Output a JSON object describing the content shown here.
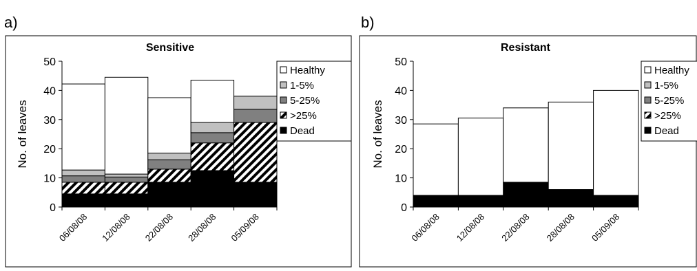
{
  "panels": [
    {
      "label": "a)"
    },
    {
      "label": "b)"
    }
  ],
  "chart_data": [
    {
      "type": "bar",
      "stacked": true,
      "title": "Sensitive",
      "xlabel": "",
      "ylabel": "No. of leaves",
      "ylim": [
        0,
        50
      ],
      "yticks": [
        0,
        10,
        20,
        30,
        40,
        50
      ],
      "categories": [
        "06/08/08",
        "12/08/08",
        "22/08/08",
        "28/08/08",
        "05/09/08"
      ],
      "series": [
        {
          "name": "Dead",
          "values": [
            4.5,
            4.5,
            8.5,
            12.5,
            8.5
          ]
        },
        {
          "name": ">25%",
          "values": [
            4,
            4,
            4.5,
            9.5,
            20.5
          ]
        },
        {
          "name": "5-25%",
          "values": [
            2.2,
            1.8,
            3.2,
            3.5,
            4.5
          ]
        },
        {
          "name": "1-5%",
          "values": [
            2,
            1,
            2.3,
            3.5,
            4.5
          ]
        },
        {
          "name": "Healthy",
          "values": [
            29.5,
            33.2,
            19,
            14.5,
            0
          ]
        }
      ],
      "legend_position": "right",
      "grid": false
    },
    {
      "type": "bar",
      "stacked": true,
      "title": "Resistant",
      "xlabel": "",
      "ylabel": "No. of leaves",
      "ylim": [
        0,
        50
      ],
      "yticks": [
        0,
        10,
        20,
        30,
        40,
        50
      ],
      "categories": [
        "06/08/08",
        "12/08/08",
        "22/08/08",
        "28/08/08",
        "05/09/08"
      ],
      "series": [
        {
          "name": "Dead",
          "values": [
            4,
            4,
            8.5,
            6,
            4
          ]
        },
        {
          "name": ">25%",
          "values": [
            0,
            0,
            0,
            0,
            0
          ]
        },
        {
          "name": "5-25%",
          "values": [
            0,
            0,
            0,
            0,
            0
          ]
        },
        {
          "name": "1-5%",
          "values": [
            0,
            0,
            0,
            0,
            0
          ]
        },
        {
          "name": "Healthy",
          "values": [
            24.5,
            26.5,
            25.5,
            30,
            36
          ]
        }
      ],
      "legend_position": "right",
      "grid": false
    }
  ],
  "legend_order": [
    "Healthy",
    "1-5%",
    "5-25%",
    ">25%",
    "Dead"
  ],
  "colors": {
    "Healthy": "#ffffff",
    "1-5%": "#c0c0c0",
    "5-25%": "#808080",
    ">25%": "hatch",
    "Dead": "#000000"
  }
}
